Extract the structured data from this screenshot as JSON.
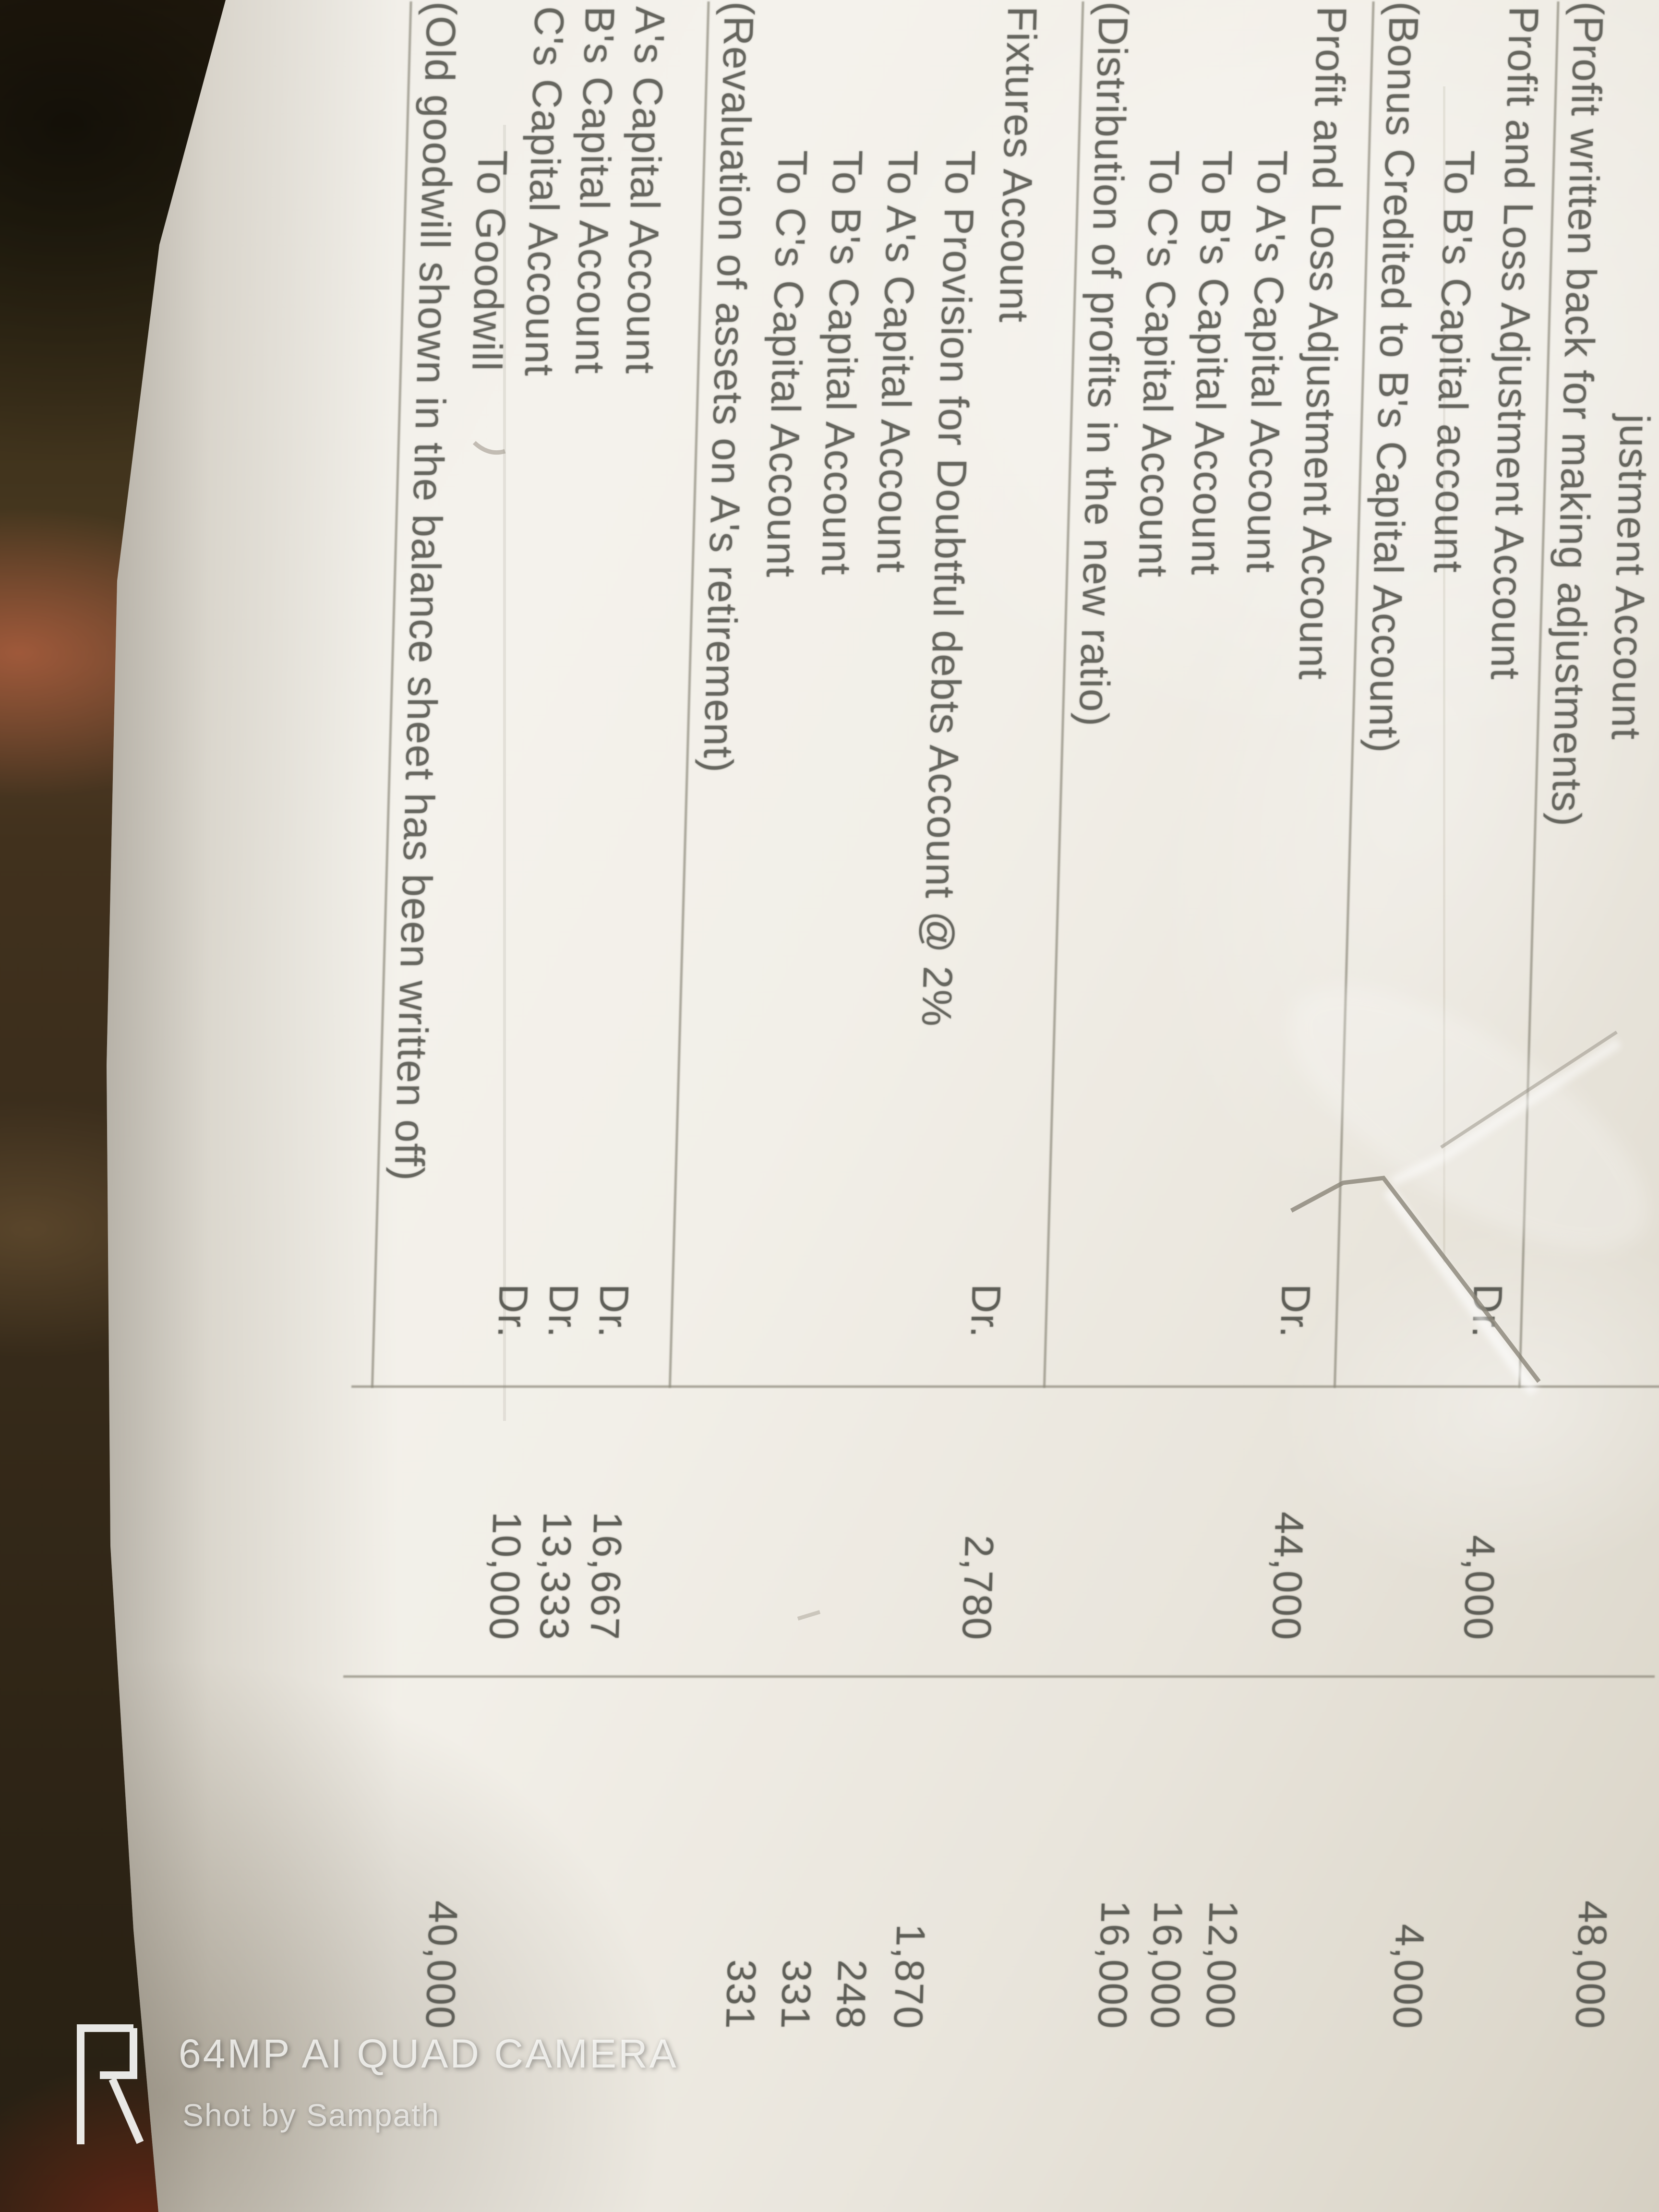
{
  "journal": {
    "rows": [
      {
        "particulars": "justment Account",
        "indent": "deep",
        "dr_label": "",
        "debit": "",
        "credit": "48,000"
      },
      {
        "particulars": "(Profit written back for making adjustments)",
        "indent": "narration",
        "dr_label": "",
        "debit": "",
        "credit": ""
      },
      {
        "particulars": "Profit and Loss Adjustment Account",
        "indent": "main",
        "dr_label": "Dr.",
        "debit": "4,000",
        "credit": ""
      },
      {
        "particulars": "To B's Capital account",
        "indent": "to",
        "dr_label": "",
        "debit": "",
        "credit": "4,000"
      },
      {
        "particulars": "(Bonus Credited to B's Capital Account)",
        "indent": "narration",
        "dr_label": "",
        "debit": "",
        "credit": ""
      },
      {
        "particulars": "Profit and Loss Adjustment Account",
        "indent": "main",
        "dr_label": "Dr.",
        "debit": "44,000",
        "credit": ""
      },
      {
        "particulars": "To A's Capital Account",
        "indent": "to",
        "dr_label": "",
        "debit": "",
        "credit": "12,000"
      },
      {
        "particulars": "To B's Capital Account",
        "indent": "to",
        "dr_label": "",
        "debit": "",
        "credit": "16,000"
      },
      {
        "particulars": "To C's Capital Account",
        "indent": "to",
        "dr_label": "",
        "debit": "",
        "credit": "16,000"
      },
      {
        "particulars": "(Distribution of profits in the new ratio)",
        "indent": "narration",
        "dr_label": "",
        "debit": "",
        "credit": ""
      },
      {
        "particulars": "Fixtures Account",
        "indent": "main",
        "dr_label": "Dr.",
        "debit": "2,780",
        "credit": ""
      },
      {
        "particulars": "To Provision for Doubtful debts Account @ 2%",
        "indent": "to",
        "dr_label": "",
        "debit": "",
        "credit": "1,870"
      },
      {
        "particulars": "To A's Capital Account",
        "indent": "to",
        "dr_label": "",
        "debit": "",
        "credit": "248"
      },
      {
        "particulars": "To B's Capital Account",
        "indent": "to",
        "dr_label": "",
        "debit": "",
        "credit": "331"
      },
      {
        "particulars": "To C's Capital Account",
        "indent": "to",
        "dr_label": "",
        "debit": "",
        "credit": "331"
      },
      {
        "particulars": "(Revaluation of assets on A's retirement)",
        "indent": "narration",
        "dr_label": "",
        "debit": "",
        "credit": ""
      },
      {
        "particulars": "A's Capital Account",
        "indent": "main",
        "dr_label": "Dr.",
        "debit": "16,667",
        "credit": ""
      },
      {
        "particulars": "B's Capital Account",
        "indent": "main",
        "dr_label": "Dr.",
        "debit": "13,333",
        "credit": ""
      },
      {
        "particulars": "C's Capital Account",
        "indent": "main",
        "dr_label": "Dr.",
        "debit": "10,000",
        "credit": ""
      },
      {
        "particulars": "To Goodwill",
        "indent": "to",
        "dr_label": "",
        "debit": "",
        "credit": "40,000"
      },
      {
        "particulars": "(Old goodwill shown in the balance sheet has been written off)",
        "indent": "narration",
        "dr_label": "",
        "debit": "",
        "credit": ""
      }
    ]
  },
  "watermark": {
    "logo": "realme-r-logo",
    "camera_label": "64MP AI QUAD CAMERA",
    "credit_label": "Shot by Sampath"
  },
  "colors": {
    "ink": "#65655e",
    "rule": "#8e8b7d",
    "paper": "#f2efe8",
    "background_dark": "#2c2315",
    "background_ridge": "#ac5e3e",
    "background_maroon": "#6e2816",
    "watermark_white": "#fcfcfa"
  }
}
